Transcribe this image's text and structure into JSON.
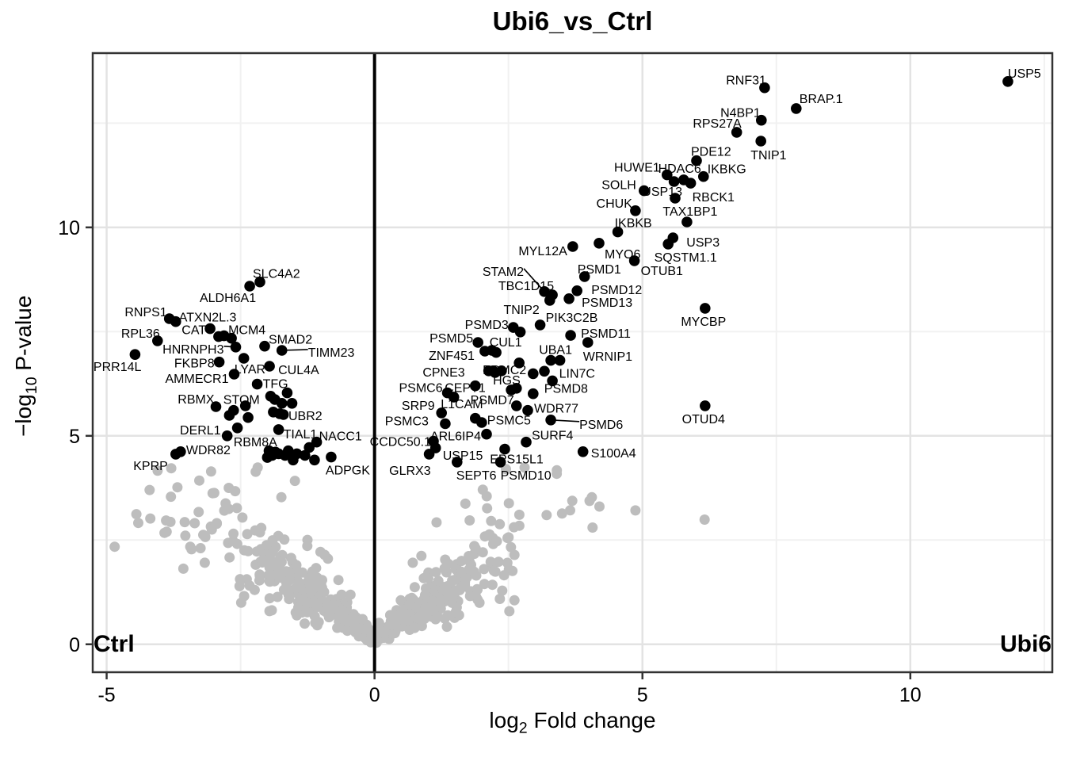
{
  "title": "Ubi6_vs_Ctrl",
  "axes": {
    "x_label_prefix": "log",
    "x_label_sub": "2",
    "x_label_suffix": " Fold change",
    "y_label_prefix": "−log",
    "y_label_sub": "10",
    "y_label_suffix": " P-value",
    "x_ticks": [
      {
        "v": -5,
        "l": "-5"
      },
      {
        "v": 0,
        "l": "0"
      },
      {
        "v": 5,
        "l": "5"
      },
      {
        "v": 10,
        "l": "10"
      }
    ],
    "y_ticks": [
      {
        "v": 0,
        "l": "0"
      },
      {
        "v": 5,
        "l": "5"
      },
      {
        "v": 10,
        "l": "10"
      }
    ]
  },
  "annotations": {
    "left_group": "Ctrl",
    "right_group": "Ubi6"
  },
  "chart_data": {
    "type": "scatter",
    "subtype": "volcano",
    "title": "Ubi6_vs_Ctrl",
    "xlabel": "log2 Fold change",
    "ylabel": "-log10 P-value",
    "xlim": [
      -5.26,
      12.65
    ],
    "ylim": [
      -0.67,
      14.18
    ],
    "x_major_gridlines": [
      -5,
      0,
      5,
      10
    ],
    "x_minor_gridlines": [
      -2.5,
      2.5,
      7.5,
      12.5
    ],
    "y_major_gridlines": [
      0,
      5,
      10
    ],
    "y_minor_gridlines": [
      2.5,
      7.5,
      12.5
    ],
    "zero_line_x": 0,
    "colors": {
      "significant": "#000000",
      "nonsignificant": "#bdbdbd",
      "grid_major": "#e3e3e3",
      "grid_minor": "#f1f1f1",
      "panel_border": "#333333"
    },
    "labeled_points": [
      [
        "USP5",
        11.82,
        13.5,
        0,
        -10,
        "s",
        0
      ],
      [
        "RNF31",
        7.28,
        13.35,
        2,
        -9,
        "e",
        0
      ],
      [
        "BRAP.1",
        7.87,
        12.85,
        4,
        -12,
        "s",
        0
      ],
      [
        "N4BP1",
        7.22,
        12.57,
        -1,
        -9,
        "e",
        0
      ],
      [
        "RPS27A",
        6.76,
        12.28,
        6,
        -11,
        "e",
        0
      ],
      [
        "TNIP1",
        7.21,
        12.07,
        -13,
        18,
        "s",
        0
      ],
      [
        "PDE12",
        6.01,
        11.6,
        -7,
        -11,
        "s",
        0
      ],
      [
        "IKBKG",
        6.14,
        11.22,
        5,
        -9,
        "s",
        0
      ],
      [
        "HDAC6",
        5.77,
        11.14,
        22,
        -14,
        "e",
        0
      ],
      [
        "HUWE1",
        5.46,
        11.26,
        -9,
        -9,
        "e",
        0
      ],
      [
        "RBCK1",
        5.9,
        11.06,
        2,
        18,
        "s",
        0
      ],
      [
        "SOLH",
        5.03,
        10.88,
        -10,
        -7,
        "e",
        0
      ],
      [
        "USP13",
        5.61,
        10.7,
        9,
        -8,
        "e",
        0
      ],
      [
        "CHUK",
        4.87,
        10.4,
        -4,
        -9,
        "e",
        0
      ],
      [
        "TAX1BP1",
        5.83,
        10.13,
        4,
        -13,
        "m",
        0
      ],
      [
        "IKBKB",
        4.54,
        9.89,
        -4,
        -11,
        "s",
        0
      ],
      [
        "USP3",
        5.57,
        9.75,
        17,
        6,
        "s",
        0
      ],
      [
        "SQSTM1.1",
        5.48,
        9.6,
        22,
        17,
        "m",
        0
      ],
      [
        "MYO6",
        4.19,
        9.62,
        7,
        14,
        "s",
        0
      ],
      [
        "MYL12A",
        3.7,
        9.54,
        -7,
        6,
        "e",
        0
      ],
      [
        "OTUB1",
        4.85,
        9.2,
        8,
        13,
        "s",
        0
      ],
      [
        "PSMD1",
        3.92,
        8.82,
        -9,
        -9,
        "s",
        0
      ],
      [
        "PSMD12",
        3.78,
        8.48,
        18,
        -1,
        "s",
        0
      ],
      [
        "PSMD13",
        3.63,
        8.29,
        16,
        5,
        "s",
        0
      ],
      [
        "TBC1D15",
        3.32,
        8.38,
        2,
        -11,
        "e",
        0
      ],
      [
        "STAM2",
        3.17,
        8.46,
        -26,
        -25,
        "e",
        1
      ],
      [
        "TNIP2",
        3.27,
        8.25,
        -13,
        12,
        "e",
        0
      ],
      [
        "PIK3C2B",
        3.09,
        7.66,
        7,
        -9,
        "s",
        0
      ],
      [
        "PSMD3",
        2.59,
        7.6,
        -6,
        -3,
        "e",
        0
      ],
      [
        "MYCBP",
        6.17,
        8.06,
        -2,
        17,
        "m",
        0
      ],
      [
        "PSMD11",
        3.66,
        7.41,
        13,
        -2,
        "s",
        0
      ],
      [
        "WRNIP1",
        3.98,
        7.24,
        -6,
        18,
        "s",
        0
      ],
      [
        "PSMD5",
        1.93,
        7.24,
        -6,
        -5,
        "e",
        0
      ],
      [
        "CUL1",
        2.19,
        7.05,
        -3,
        -10,
        "s",
        0
      ],
      [
        "ZNF451",
        2.06,
        7.03,
        -13,
        6,
        "e",
        0
      ],
      [
        "UBA1",
        3.29,
        6.81,
        6,
        -13,
        "m",
        0
      ],
      [
        "PSMC2",
        2.7,
        6.75,
        9,
        9,
        "e",
        0
      ],
      [
        "LIN7C",
        3.46,
        6.81,
        -1,
        17,
        "s",
        0
      ],
      [
        "CPNE3",
        2.13,
        6.56,
        -30,
        2,
        "e",
        0
      ],
      [
        "HGS",
        2.65,
        6.14,
        5,
        -10,
        "e",
        0
      ],
      [
        "CEPT1",
        1.88,
        6.2,
        13,
        3,
        "e",
        0
      ],
      [
        "PSMD8",
        2.96,
        6.01,
        14,
        -6,
        "s",
        0
      ],
      [
        "PSMC6",
        1.36,
        6.03,
        -6,
        -6,
        "e",
        0
      ],
      [
        "SRP9",
        1.48,
        5.93,
        -24,
        11,
        "e",
        0
      ],
      [
        "PSMD7",
        2.65,
        5.72,
        -3,
        -7,
        "e",
        0
      ],
      [
        "WDR77",
        2.86,
        5.61,
        8,
        -2,
        "s",
        0
      ],
      [
        "L1CAM",
        1.25,
        5.55,
        -1,
        -11,
        "s",
        0
      ],
      [
        "PSMC5",
        1.88,
        5.42,
        15,
        3,
        "s",
        0
      ],
      [
        "PSMC3",
        1.32,
        5.29,
        -21,
        -3,
        "e",
        0
      ],
      [
        "PSMD6",
        3.29,
        5.38,
        36,
        6,
        "s",
        1
      ],
      [
        "ARL6IP4",
        2.09,
        5.04,
        -7,
        3,
        "e",
        0
      ],
      [
        "CCDC50.1",
        1.1,
        4.87,
        -3,
        1,
        "e",
        0
      ],
      [
        "SURF4",
        2.83,
        4.85,
        7,
        -8,
        "s",
        0
      ],
      [
        "USP15",
        1.14,
        4.71,
        9,
        10,
        "s",
        0
      ],
      [
        "GLRX3",
        1.02,
        4.56,
        2,
        21,
        "e",
        0
      ],
      [
        "SEPT6",
        1.54,
        4.37,
        -1,
        17,
        "s",
        0
      ],
      [
        "PSMD10",
        2.35,
        4.37,
        0,
        17,
        "s",
        0
      ],
      [
        "EPS15L1",
        2.43,
        4.68,
        15,
        13,
        "m",
        0
      ],
      [
        "S100A4",
        3.89,
        4.62,
        10,
        2,
        "s",
        0
      ],
      [
        "OTUD4",
        6.17,
        5.72,
        -2,
        17,
        "m",
        0
      ],
      [
        "SLC4A2",
        -2.14,
        8.69,
        -9,
        -10,
        "s",
        0
      ],
      [
        "ALDH6A1",
        -2.33,
        8.59,
        8,
        15,
        "e",
        0
      ],
      [
        "RNPS1",
        -3.83,
        7.81,
        -3,
        -8,
        "e",
        0
      ],
      [
        "ATXN2L.3",
        -3.71,
        7.74,
        4,
        -5,
        "s",
        0
      ],
      [
        "RPL36",
        -4.05,
        7.28,
        3,
        -9,
        "e",
        0
      ],
      [
        "CAT",
        -3.07,
        7.57,
        -5,
        2,
        "e",
        0
      ],
      [
        "MCM4",
        -2.67,
        7.34,
        -4,
        -10,
        "s",
        0
      ],
      [
        "HNRNPH3",
        -2.59,
        7.13,
        -15,
        3,
        "e",
        1
      ],
      [
        "SMAD2",
        -2.05,
        7.15,
        5,
        -8,
        "s",
        0
      ],
      [
        "TIMM23",
        -1.73,
        7.05,
        33,
        3,
        "s",
        1
      ],
      [
        "FKBP8",
        -2.9,
        6.77,
        -6,
        2,
        "e",
        0
      ],
      [
        "LYAR",
        -2.44,
        6.86,
        -12,
        14,
        "s",
        0
      ],
      [
        "CUL4A",
        -1.96,
        6.67,
        11,
        5,
        "s",
        0
      ],
      [
        "AMMECR1",
        -2.62,
        6.48,
        -7,
        6,
        "e",
        0
      ],
      [
        "TFG",
        -2.19,
        6.24,
        7,
        0,
        "s",
        0
      ],
      [
        "RBMX",
        -2.96,
        5.7,
        -2,
        -9,
        "e",
        0
      ],
      [
        "STOM",
        -2.63,
        5.61,
        -13,
        -13,
        "s",
        0
      ],
      [
        "UBR2",
        -1.77,
        5.53,
        11,
        3,
        "s",
        0
      ],
      [
        "DERL1",
        -2.56,
        5.19,
        -21,
        3,
        "e",
        0
      ],
      [
        "RBM8A",
        -2.75,
        5.0,
        8,
        8,
        "s",
        0
      ],
      [
        "TIAL1",
        -1.79,
        5.15,
        6,
        6,
        "s",
        0
      ],
      [
        "NACC1",
        -1.08,
        4.85,
        3,
        -7,
        "s",
        0
      ],
      [
        "WDR82",
        -3.62,
        4.62,
        7,
        -2,
        "s",
        0
      ],
      [
        "KPRP",
        -3.71,
        4.56,
        -10,
        15,
        "e",
        0
      ],
      [
        "ADPGK",
        -0.81,
        4.49,
        -7,
        17,
        "s",
        0
      ],
      [
        "PRR14L",
        -4.47,
        6.95,
        8,
        16,
        "e",
        0
      ]
    ],
    "unlabeled_significant_points": [
      [
        5.59,
        11.1
      ],
      [
        2.72,
        7.49
      ],
      [
        2.27,
        7.0
      ],
      [
        2.25,
        6.52
      ],
      [
        2.21,
        6.56
      ],
      [
        2.37,
        6.56
      ],
      [
        3.17,
        6.55
      ],
      [
        3.32,
        6.32
      ],
      [
        2.96,
        6.49
      ],
      [
        2.0,
        5.32
      ],
      [
        2.55,
        6.1
      ],
      [
        -2.91,
        7.38
      ],
      [
        -2.81,
        7.4
      ],
      [
        -2.41,
        5.72
      ],
      [
        -2.36,
        5.44
      ],
      [
        -2.71,
        5.49
      ],
      [
        -1.94,
        5.95
      ],
      [
        -1.86,
        5.87
      ],
      [
        -1.73,
        5.78
      ],
      [
        -1.63,
        6.03
      ],
      [
        -1.54,
        5.78
      ],
      [
        -1.89,
        5.57
      ],
      [
        -1.7,
        5.51
      ],
      [
        -1.97,
        4.64
      ],
      [
        -1.85,
        4.61
      ],
      [
        -1.91,
        4.53
      ],
      [
        -1.79,
        4.57
      ],
      [
        -1.67,
        4.53
      ],
      [
        -2.0,
        4.48
      ],
      [
        -1.61,
        4.64
      ],
      [
        -1.45,
        4.57
      ],
      [
        -1.3,
        4.53
      ],
      [
        -1.22,
        4.72
      ],
      [
        -1.12,
        4.42
      ],
      [
        -1.52,
        4.42
      ]
    ],
    "background": {
      "color": "#bdbdbd",
      "count": 520,
      "sparse_count": 42,
      "seed": 11,
      "outliers": [
        [
          6.16,
          2.99
        ],
        [
          4.87,
          3.21
        ],
        [
          3.69,
          3.44
        ],
        [
          3.4,
          4.09
        ],
        [
          -4.41,
          2.91
        ],
        [
          -3.89,
          2.97
        ],
        [
          -4.85,
          2.34
        ],
        [
          -3.44,
          2.34
        ],
        [
          -2.78,
          3.38
        ]
      ]
    }
  }
}
